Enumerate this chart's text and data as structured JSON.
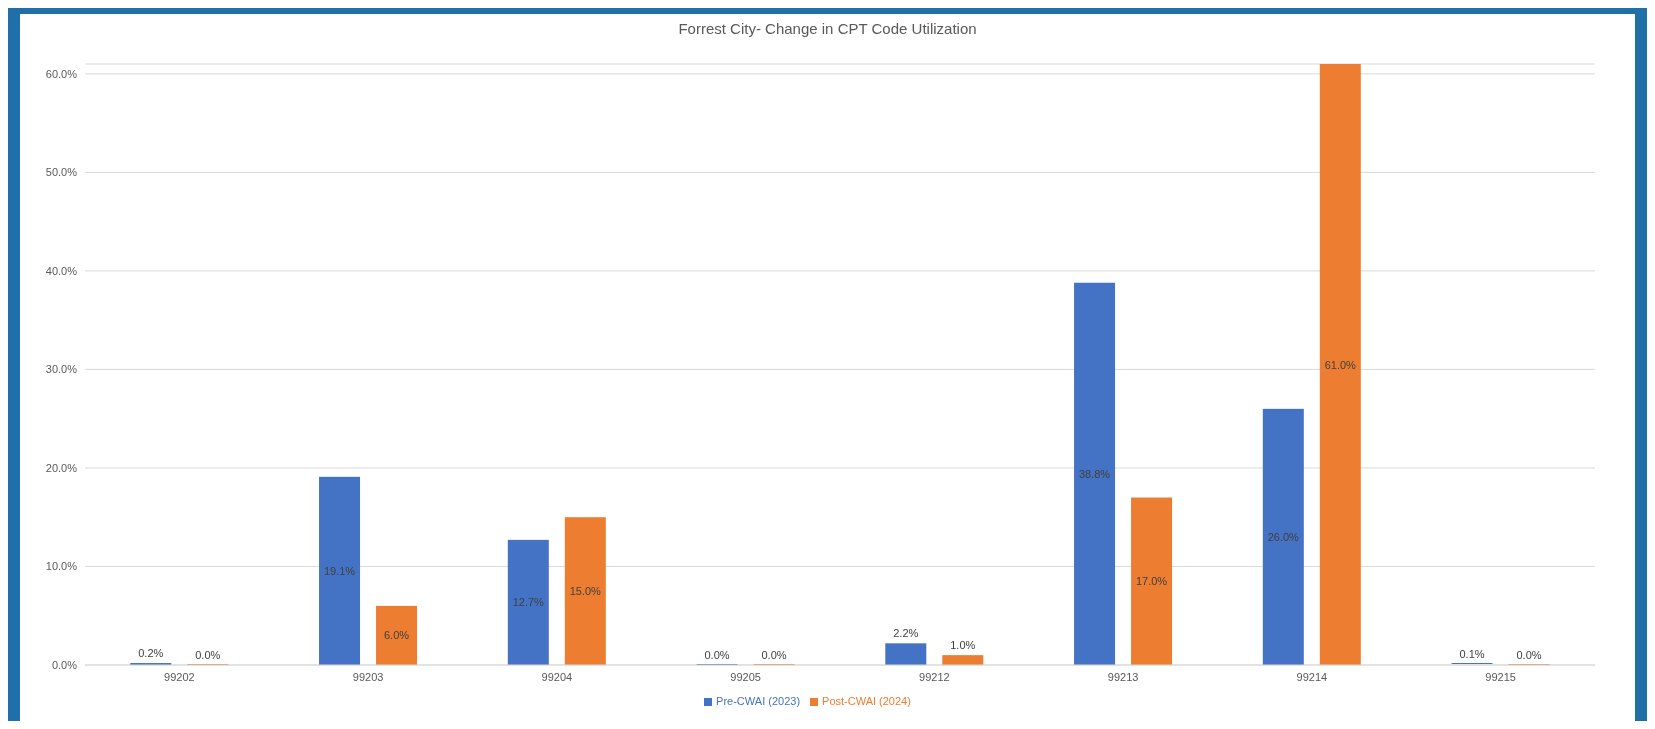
{
  "chart_data": {
    "type": "bar",
    "title": "Forrest City- Change in CPT Code Utilization",
    "categories": [
      "99202",
      "99203",
      "99204",
      "99205",
      "99212",
      "99213",
      "99214",
      "99215"
    ],
    "series": [
      {
        "name": "Pre-CWAI (2023)",
        "color": "#4472c4",
        "values": [
          0.2,
          19.1,
          12.7,
          0.0,
          2.2,
          38.8,
          26.0,
          0.1
        ],
        "value_labels": [
          "0.2%",
          "19.1%",
          "12.7%",
          "0.0%",
          "2.2%",
          "38.8%",
          "26.0%",
          "0.1%"
        ]
      },
      {
        "name": "Post-CWAI (2024)",
        "color": "#ed7d31",
        "values": [
          0.0,
          6.0,
          15.0,
          0.0,
          1.0,
          17.0,
          61.0,
          0.0
        ],
        "value_labels": [
          "0.0%",
          "6.0%",
          "15.0%",
          "0.0%",
          "1.0%",
          "17.0%",
          "61.0%",
          "0.0%"
        ]
      }
    ],
    "ylim": [
      0,
      61
    ],
    "yticks": [
      {
        "value": 0,
        "label": "0.0%"
      },
      {
        "value": 10,
        "label": "10.0%"
      },
      {
        "value": 20,
        "label": "20.0%"
      },
      {
        "value": 30,
        "label": "30.0%"
      },
      {
        "value": 40,
        "label": "40.0%"
      },
      {
        "value": 50,
        "label": "50.0%"
      },
      {
        "value": 60,
        "label": "60.0%"
      }
    ],
    "grid": "y",
    "legend": "bottom"
  }
}
